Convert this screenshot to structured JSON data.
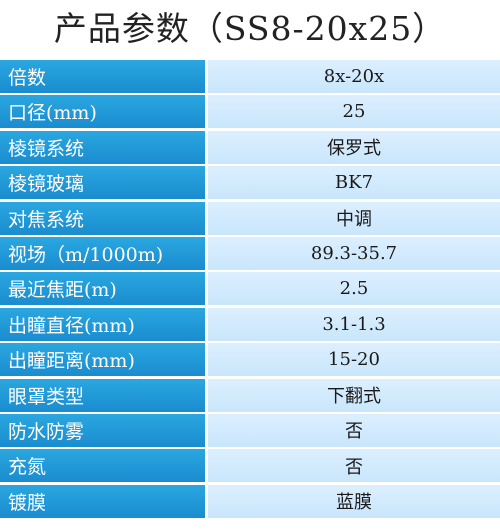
{
  "title": "产品参数（SS8-20x25）",
  "rows": [
    {
      "label": "倍数",
      "value": "8x-20x"
    },
    {
      "label": "口径(mm)",
      "value": "25"
    },
    {
      "label": "棱镜系统",
      "value": "保罗式"
    },
    {
      "label": "棱镜玻璃",
      "value": "BK7"
    },
    {
      "label": "对焦系统",
      "value": "中调"
    },
    {
      "label": "视场（m/1000m)",
      "value": "89.3-35.7"
    },
    {
      "label": "最近焦距(m)",
      "value": "2.5"
    },
    {
      "label": "出瞳直径(mm)",
      "value": "3.1-1.3"
    },
    {
      "label": "出瞳距离(mm)",
      "value": "15-20"
    },
    {
      "label": "眼罩类型",
      "value": "下翻式"
    },
    {
      "label": "防水防雾",
      "value": "否"
    },
    {
      "label": "充氮",
      "value": "否"
    },
    {
      "label": "镀膜",
      "value": "蓝膜"
    }
  ],
  "colors": {
    "label_background": "#1a8ccf",
    "value_background": "#d4ebfc",
    "title_text": "#222222"
  }
}
